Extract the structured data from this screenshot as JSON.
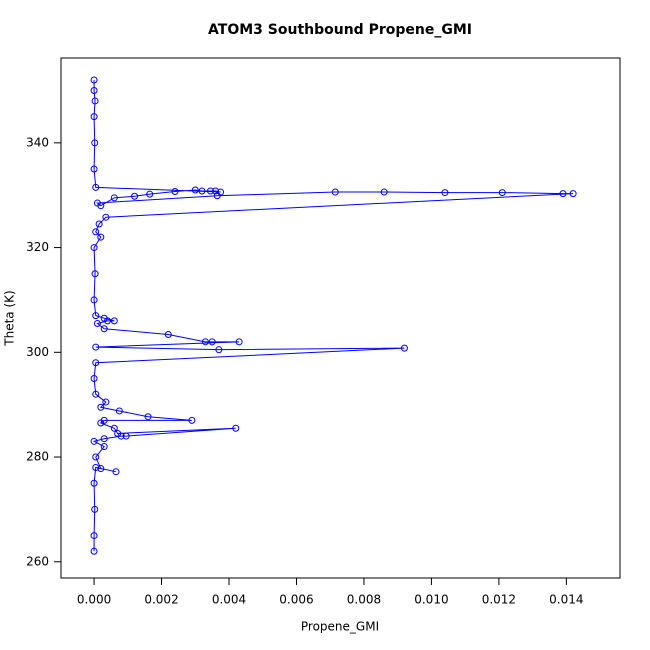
{
  "chart_data": {
    "type": "line",
    "title": "ATOM3 Southbound Propene_GMI",
    "x_label": "Propene_GMI",
    "y_label": "Theta (K)",
    "xlim": [
      -0.00098,
      0.01559
    ],
    "ylim": [
      256.9,
      356.2
    ],
    "xticks": [
      {
        "value": 0,
        "label": "0.000"
      },
      {
        "value": 0.002,
        "label": "0.002"
      },
      {
        "value": 0.004,
        "label": "0.004"
      },
      {
        "value": 0.006,
        "label": "0.006"
      },
      {
        "value": 0.008,
        "label": "0.008"
      },
      {
        "value": 0.01,
        "label": "0.010"
      },
      {
        "value": 0.012,
        "label": "0.012"
      },
      {
        "value": 0.014,
        "label": "0.014"
      }
    ],
    "yticks": [
      260,
      280,
      300,
      320,
      340
    ],
    "x": [
      0.0,
      0.0,
      2e-05,
      0.0,
      5e-05,
      0.00065,
      0.0002,
      5e-05,
      0.0003,
      0.0,
      0.0003,
      0.0008,
      0.00095,
      0.0042,
      0.0007,
      0.0006,
      0.0002,
      0.0003,
      0.0029,
      0.0016,
      0.00075,
      0.0002,
      0.00035,
      5e-05,
      0.0,
      5e-05,
      0.0092,
      0.0037,
      5e-05,
      0.0043,
      0.0035,
      0.0033,
      0.0022,
      0.0003,
      0.0001,
      0.0004,
      0.0006,
      0.0003,
      5e-05,
      0.0,
      3e-05,
      0.0,
      0.0002,
      5e-05,
      0.00015,
      0.00035,
      0.0142,
      0.0139,
      0.0121,
      0.0104,
      0.0086,
      0.00715,
      0.00365,
      0.0001,
      0.0002,
      0.0006,
      0.0012,
      0.00165,
      0.0024,
      0.003,
      0.0032,
      0.00345,
      0.0036,
      0.00375,
      5e-05,
      0.0,
      2e-05,
      0.0,
      3e-05,
      0.0,
      0.0
    ],
    "series": [
      {
        "color": "#0000ff",
        "values": [
          262,
          265,
          270,
          275,
          278,
          277.2,
          277.8,
          280,
          282,
          283,
          283.5,
          284,
          284,
          285.5,
          284.5,
          285.5,
          286.5,
          287,
          287,
          287.7,
          288.8,
          289.5,
          290.5,
          292,
          295,
          298,
          300.8,
          300.5,
          301,
          302,
          302,
          302,
          303.4,
          304.5,
          305.5,
          306,
          306,
          306.5,
          307,
          310,
          315,
          320,
          322,
          323,
          324.5,
          325.8,
          330.3,
          330.3,
          330.5,
          330.5,
          330.6,
          330.6,
          329.9,
          328.5,
          328,
          329.5,
          329.8,
          330.2,
          330.7,
          331,
          330.8,
          330.8,
          330.8,
          330.6,
          331.5,
          335,
          340,
          345,
          348,
          350,
          352
        ]
      }
    ]
  }
}
